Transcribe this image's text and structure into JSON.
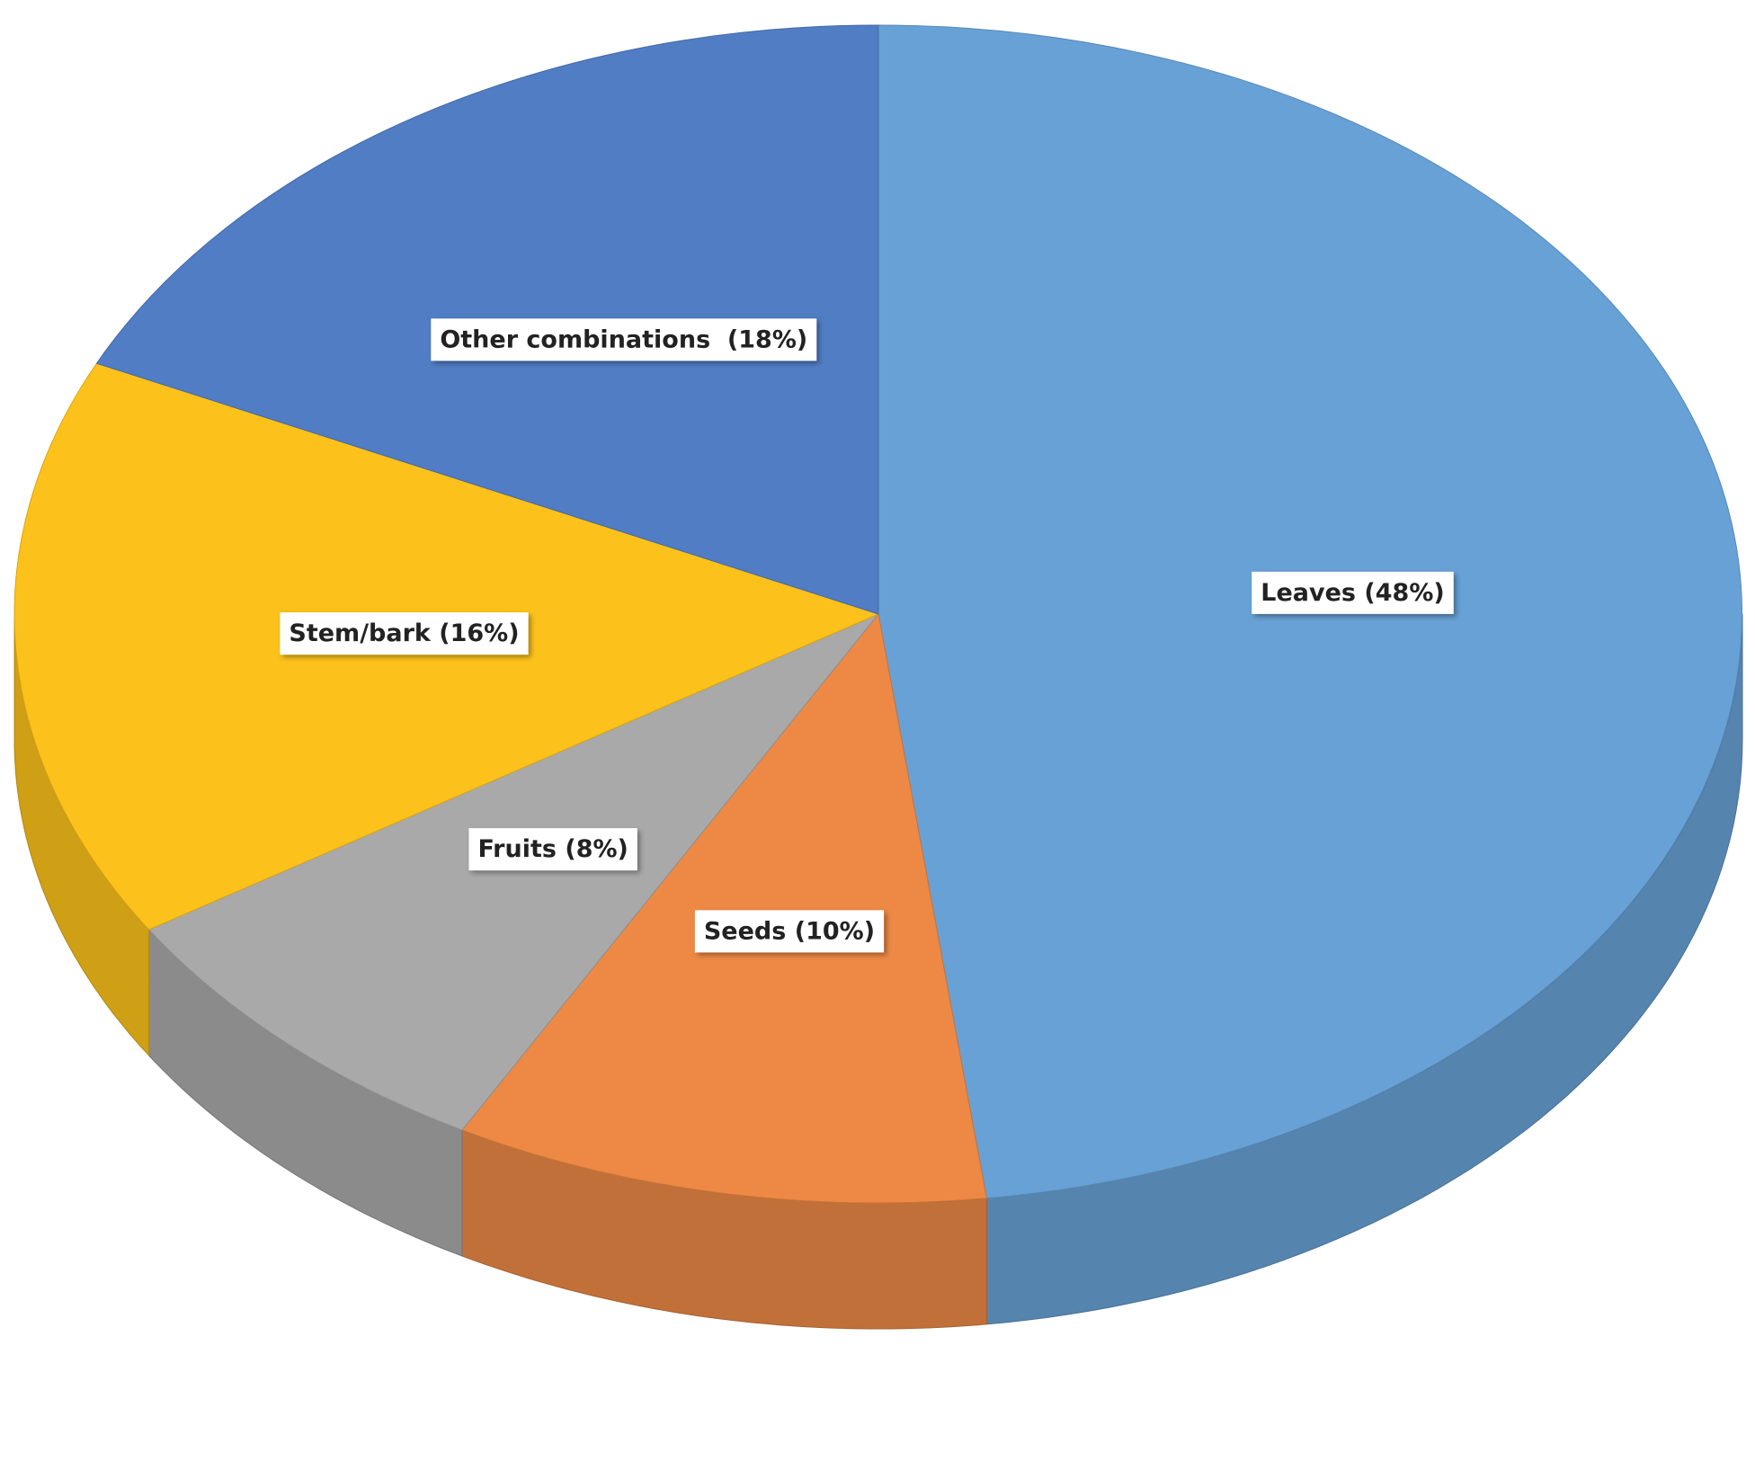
{
  "chart_data": {
    "type": "pie",
    "values": [
      48,
      10,
      8,
      16,
      18
    ],
    "value_labels": [
      "Leaves (48%)",
      "Seeds (10%)",
      "Fruits (8%)",
      "Stem/bark (16%)",
      "Other combinations  (18%)"
    ],
    "colors": [
      "#68a1d6",
      "#ed8945",
      "#a9a9a9",
      "#fcc21b",
      "#517dc4"
    ]
  }
}
